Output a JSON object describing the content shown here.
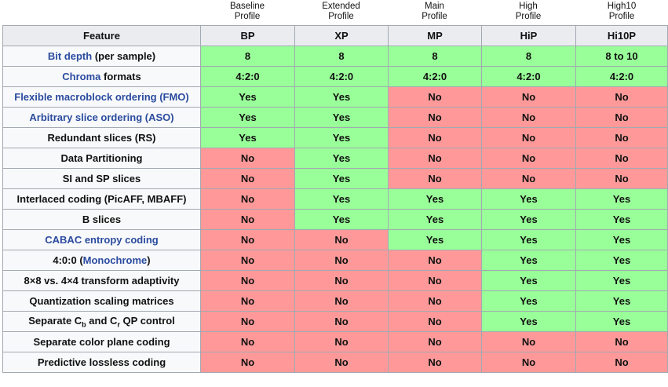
{
  "profiles": [
    {
      "lines": [
        "Baseline",
        "Profile"
      ]
    },
    {
      "lines": [
        "Extended",
        "Profile"
      ]
    },
    {
      "lines": [
        "Main",
        "Profile"
      ]
    },
    {
      "lines": [
        "High",
        "Profile"
      ]
    },
    {
      "lines": [
        "High10",
        "Profile"
      ]
    }
  ],
  "table": {
    "header": [
      "Feature",
      "BP",
      "XP",
      "MP",
      "HiP",
      "Hi10P"
    ],
    "rows": [
      {
        "feature": [
          {
            "text": "Bit depth",
            "link": true
          },
          {
            "text": " (per sample)"
          }
        ],
        "cells": [
          {
            "text": "8",
            "color": "#9f9"
          },
          {
            "text": "8",
            "color": "#9f9"
          },
          {
            "text": "8",
            "color": "#9f9"
          },
          {
            "text": "8",
            "color": "#9f9"
          },
          {
            "text": "8 to 10",
            "color": "#9f9"
          }
        ]
      },
      {
        "feature": [
          {
            "text": "Chroma",
            "link": true
          },
          {
            "text": " formats"
          }
        ],
        "cells": [
          {
            "text": "4:2:0",
            "color": "#9f9"
          },
          {
            "text": "4:2:0",
            "color": "#9f9"
          },
          {
            "text": "4:2:0",
            "color": "#9f9"
          },
          {
            "text": "4:2:0",
            "color": "#9f9"
          },
          {
            "text": "4:2:0",
            "color": "#9f9"
          }
        ]
      },
      {
        "feature": [
          {
            "text": "Flexible macroblock ordering (FMO)",
            "link": true
          }
        ],
        "cells": [
          {
            "text": "Yes",
            "color": "#9f9"
          },
          {
            "text": "Yes",
            "color": "#9f9"
          },
          {
            "text": "No",
            "color": "#f99"
          },
          {
            "text": "No",
            "color": "#f99"
          },
          {
            "text": "No",
            "color": "#f99"
          }
        ]
      },
      {
        "feature": [
          {
            "text": "Arbitrary slice ordering (ASO)",
            "link": true
          }
        ],
        "cells": [
          {
            "text": "Yes",
            "color": "#9f9"
          },
          {
            "text": "Yes",
            "color": "#9f9"
          },
          {
            "text": "No",
            "color": "#f99"
          },
          {
            "text": "No",
            "color": "#f99"
          },
          {
            "text": "No",
            "color": "#f99"
          }
        ]
      },
      {
        "feature": [
          {
            "text": "Redundant slices (RS)"
          }
        ],
        "cells": [
          {
            "text": "Yes",
            "color": "#9f9"
          },
          {
            "text": "Yes",
            "color": "#9f9"
          },
          {
            "text": "No",
            "color": "#f99"
          },
          {
            "text": "No",
            "color": "#f99"
          },
          {
            "text": "No",
            "color": "#f99"
          }
        ]
      },
      {
        "feature": [
          {
            "text": "Data Partitioning"
          }
        ],
        "cells": [
          {
            "text": "No",
            "color": "#f99"
          },
          {
            "text": "Yes",
            "color": "#9f9"
          },
          {
            "text": "No",
            "color": "#f99"
          },
          {
            "text": "No",
            "color": "#f99"
          },
          {
            "text": "No",
            "color": "#f99"
          }
        ]
      },
      {
        "feature": [
          {
            "text": "SI and SP slices"
          }
        ],
        "cells": [
          {
            "text": "No",
            "color": "#f99"
          },
          {
            "text": "Yes",
            "color": "#9f9"
          },
          {
            "text": "No",
            "color": "#f99"
          },
          {
            "text": "No",
            "color": "#f99"
          },
          {
            "text": "No",
            "color": "#f99"
          }
        ]
      },
      {
        "feature": [
          {
            "text": "Interlaced coding (PicAFF, MBAFF)"
          }
        ],
        "cells": [
          {
            "text": "No",
            "color": "#f99"
          },
          {
            "text": "Yes",
            "color": "#9f9"
          },
          {
            "text": "Yes",
            "color": "#9f9"
          },
          {
            "text": "Yes",
            "color": "#9f9"
          },
          {
            "text": "Yes",
            "color": "#9f9"
          }
        ]
      },
      {
        "feature": [
          {
            "text": "B slices"
          }
        ],
        "cells": [
          {
            "text": "No",
            "color": "#f99"
          },
          {
            "text": "Yes",
            "color": "#9f9"
          },
          {
            "text": "Yes",
            "color": "#9f9"
          },
          {
            "text": "Yes",
            "color": "#9f9"
          },
          {
            "text": "Yes",
            "color": "#9f9"
          }
        ]
      },
      {
        "feature": [
          {
            "text": "CABAC entropy coding",
            "link": true
          }
        ],
        "cells": [
          {
            "text": "No",
            "color": "#f99"
          },
          {
            "text": "No",
            "color": "#f99"
          },
          {
            "text": "Yes",
            "color": "#9f9"
          },
          {
            "text": "Yes",
            "color": "#9f9"
          },
          {
            "text": "Yes",
            "color": "#9f9"
          }
        ]
      },
      {
        "feature": [
          {
            "text": "4:0:0 ("
          },
          {
            "text": "Monochrome",
            "link": true
          },
          {
            "text": ")"
          }
        ],
        "cells": [
          {
            "text": "No",
            "color": "#f99"
          },
          {
            "text": "No",
            "color": "#f99"
          },
          {
            "text": "No",
            "color": "#f99"
          },
          {
            "text": "Yes",
            "color": "#9f9"
          },
          {
            "text": "Yes",
            "color": "#9f9"
          }
        ]
      },
      {
        "feature": [
          {
            "text": "8×8 vs. 4×4 transform adaptivity"
          }
        ],
        "cells": [
          {
            "text": "No",
            "color": "#f99"
          },
          {
            "text": "No",
            "color": "#f99"
          },
          {
            "text": "No",
            "color": "#f99"
          },
          {
            "text": "Yes",
            "color": "#9f9"
          },
          {
            "text": "Yes",
            "color": "#9f9"
          }
        ]
      },
      {
        "feature": [
          {
            "text": "Quantization scaling matrices"
          }
        ],
        "cells": [
          {
            "text": "No",
            "color": "#f99"
          },
          {
            "text": "No",
            "color": "#f99"
          },
          {
            "text": "No",
            "color": "#f99"
          },
          {
            "text": "Yes",
            "color": "#9f9"
          },
          {
            "text": "Yes",
            "color": "#9f9"
          }
        ]
      },
      {
        "feature": [
          {
            "text": "Separate C"
          },
          {
            "text": "b",
            "sub": true
          },
          {
            "text": " and C"
          },
          {
            "text": "r",
            "sub": true
          },
          {
            "text": " QP control"
          }
        ],
        "cells": [
          {
            "text": "No",
            "color": "#f99"
          },
          {
            "text": "No",
            "color": "#f99"
          },
          {
            "text": "No",
            "color": "#f99"
          },
          {
            "text": "Yes",
            "color": "#9f9"
          },
          {
            "text": "Yes",
            "color": "#9f9"
          }
        ]
      },
      {
        "feature": [
          {
            "text": "Separate color plane coding"
          }
        ],
        "cells": [
          {
            "text": "No",
            "color": "#f99"
          },
          {
            "text": "No",
            "color": "#f99"
          },
          {
            "text": "No",
            "color": "#f99"
          },
          {
            "text": "No",
            "color": "#f99"
          },
          {
            "text": "No",
            "color": "#f99"
          }
        ]
      },
      {
        "feature": [
          {
            "text": "Predictive lossless coding"
          }
        ],
        "cells": [
          {
            "text": "No",
            "color": "#f99"
          },
          {
            "text": "No",
            "color": "#f99"
          },
          {
            "text": "No",
            "color": "#f99"
          },
          {
            "text": "No",
            "color": "#f99"
          },
          {
            "text": "No",
            "color": "#f99"
          }
        ]
      }
    ]
  }
}
